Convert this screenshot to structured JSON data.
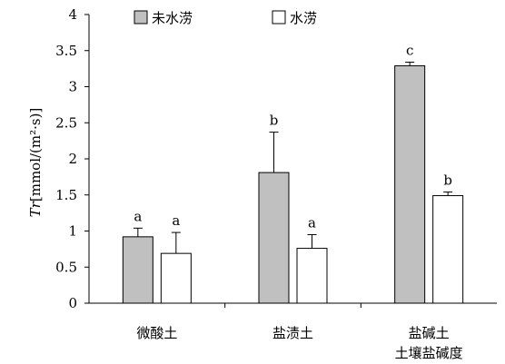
{
  "chart_data": {
    "type": "bar",
    "title": "",
    "ylabel_italic": "Tr",
    "ylabel_rest": "[mmol/(m²·s)]",
    "xlabel": "土壤盐碱度",
    "ylim": [
      0,
      4
    ],
    "yticks": [
      "0",
      "0.5",
      "1",
      "1.5",
      "2",
      "2.5",
      "3",
      "3.5",
      "4"
    ],
    "categories": [
      "微酸土",
      "盐渍土",
      "盐碱土"
    ],
    "legend_position": "top",
    "grid": false,
    "series": [
      {
        "name": "未水涝",
        "color": "#c0c0c0",
        "values": [
          0.92,
          1.81,
          3.29
        ],
        "errors": [
          0.12,
          0.56,
          0.05
        ],
        "labels": [
          "a",
          "b",
          "c"
        ]
      },
      {
        "name": "水涝",
        "color": "#ffffff",
        "values": [
          0.69,
          0.76,
          1.49
        ],
        "errors": [
          0.29,
          0.19,
          0.05
        ],
        "labels": [
          "a",
          "a",
          "b"
        ]
      }
    ]
  }
}
